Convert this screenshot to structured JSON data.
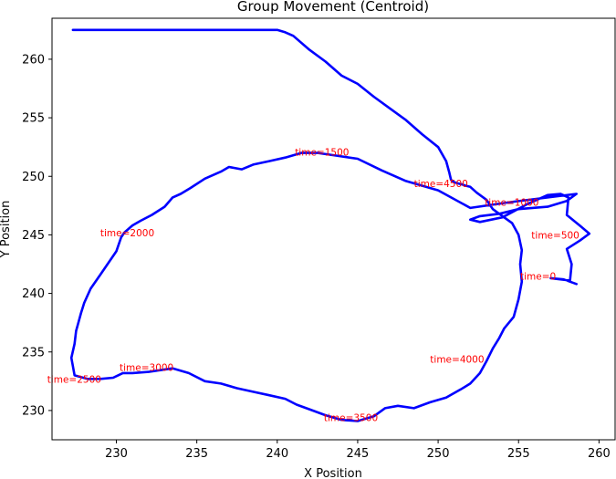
{
  "chart_data": {
    "type": "line",
    "title": "Group Movement (Centroid)",
    "xlabel": "X Position",
    "ylabel": "Y Position",
    "xlim": [
      226,
      261
    ],
    "ylim": [
      227.5,
      263.5
    ],
    "xticks": [
      230,
      235,
      240,
      245,
      250,
      255,
      260
    ],
    "yticks": [
      230,
      235,
      240,
      245,
      250,
      255,
      260
    ],
    "grid": false,
    "series": [
      {
        "color": "#0000ff",
        "x": [
          258.6,
          257.8,
          257.0,
          258.2,
          258.3,
          258.0,
          258.8,
          259.4,
          258.8,
          258.0,
          258.1,
          257.6,
          256.8,
          255.5,
          254.0,
          252.6,
          252.0,
          252.6,
          253.8,
          255.0,
          256.8,
          258.0,
          258.6,
          254.5,
          252.0,
          250.0,
          248.0,
          246.5,
          245.0,
          243.5,
          242.5,
          241.5,
          240.5,
          239.5,
          238.5,
          237.8,
          237.0,
          236.5,
          235.5,
          234.6,
          234.0,
          233.5,
          233.0,
          232.2,
          231.5,
          231.0,
          230.5,
          230.3,
          230.0,
          229.6,
          229.0,
          228.4,
          228.0,
          227.8,
          227.6,
          227.5,
          227.4,
          227.2,
          227.4,
          228.2,
          229.0,
          229.8,
          230.4,
          231.0,
          232.0,
          233.5,
          234.5,
          235.5,
          236.5,
          237.5,
          238.5,
          239.5,
          240.5,
          241.2,
          242.0,
          243.0,
          244.0,
          245.0,
          246.0,
          246.7,
          247.5,
          248.5,
          249.5,
          250.5,
          251.4,
          252.0,
          252.6,
          253.0,
          253.4,
          253.8,
          254.1,
          254.7,
          255.0,
          255.2,
          255.1,
          255.2,
          255.0,
          254.6,
          254.0,
          253.4,
          253.0,
          252.4,
          252.0,
          251.7,
          251.5,
          251.2,
          251.0,
          250.9,
          250.8,
          250.7,
          250.5,
          250.0,
          249.0,
          248.0,
          247.0,
          246.0,
          245.0,
          244.0,
          243.0,
          242.0,
          241.0,
          240.5,
          240.0,
          239.6,
          239.0,
          238.4,
          237.6,
          237.0,
          236.5,
          235.5,
          234.5,
          233.5,
          233.0,
          232.0,
          231.0,
          230.0,
          229.0,
          228.3,
          227.8,
          227.5,
          227.3
        ],
        "y": [
          240.8,
          241.2,
          241.3,
          241.1,
          242.5,
          243.8,
          244.5,
          245.1,
          245.8,
          246.7,
          248.2,
          248.5,
          248.4,
          247.6,
          246.5,
          246.1,
          246.3,
          246.6,
          246.8,
          247.2,
          247.4,
          247.9,
          248.5,
          247.8,
          247.3,
          248.8,
          249.6,
          250.5,
          251.5,
          251.8,
          252.0,
          252.0,
          251.6,
          251.3,
          251.0,
          250.6,
          250.8,
          250.4,
          249.8,
          249.0,
          248.5,
          248.2,
          247.4,
          246.7,
          246.2,
          245.8,
          245.2,
          244.8,
          243.6,
          242.8,
          241.6,
          240.4,
          239.2,
          238.3,
          237.3,
          236.8,
          235.7,
          234.5,
          233.0,
          232.7,
          232.7,
          232.8,
          233.2,
          233.2,
          233.3,
          233.6,
          233.2,
          232.5,
          232.3,
          231.9,
          231.6,
          231.3,
          231.0,
          230.5,
          230.1,
          229.6,
          229.2,
          229.1,
          229.5,
          230.2,
          230.4,
          230.2,
          230.7,
          231.1,
          231.8,
          232.3,
          233.2,
          234.2,
          235.3,
          236.2,
          237.0,
          238.0,
          239.5,
          241.0,
          242.5,
          243.7,
          245.0,
          246.0,
          246.6,
          247.2,
          248.0,
          248.6,
          249.1,
          249.2,
          249.3,
          249.4,
          249.5,
          249.6,
          249.7,
          250.3,
          251.3,
          252.5,
          253.6,
          254.8,
          255.8,
          256.8,
          257.9,
          258.6,
          259.8,
          260.8,
          262.0,
          262.3,
          262.5,
          262.5,
          262.5,
          262.5,
          262.5,
          262.5,
          262.5,
          262.5,
          262.5,
          262.5,
          262.5,
          262.5,
          262.5,
          262.5,
          262.5,
          262.5,
          262.5,
          262.5,
          262.5
        ]
      }
    ],
    "annotations": [
      {
        "text": "time=0",
        "x": 255.1,
        "y": 241.5
      },
      {
        "text": "time=500",
        "x": 255.8,
        "y": 245.0
      },
      {
        "text": "time=1000",
        "x": 252.9,
        "y": 247.8
      },
      {
        "text": "time=1500",
        "x": 241.1,
        "y": 252.1
      },
      {
        "text": "time=2000",
        "x": 229.0,
        "y": 245.2
      },
      {
        "text": "time=2500",
        "x": 225.7,
        "y": 232.7
      },
      {
        "text": "time=3000",
        "x": 230.2,
        "y": 233.7
      },
      {
        "text": "time=3500",
        "x": 242.9,
        "y": 229.4
      },
      {
        "text": "time=4000",
        "x": 249.5,
        "y": 234.4
      },
      {
        "text": "time=4500",
        "x": 248.5,
        "y": 249.4
      }
    ],
    "annotation_color": "#ff0000"
  }
}
